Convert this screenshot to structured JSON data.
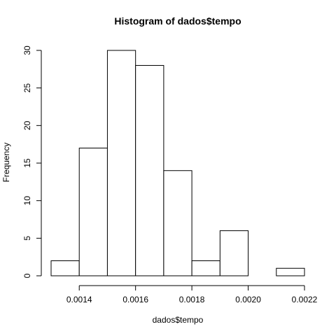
{
  "chart_data": {
    "type": "bar",
    "title": "Histogram of dados$tempo",
    "xlabel": "dados$tempo",
    "ylabel": "Frequency",
    "bin_edges": [
      0.0013,
      0.0014,
      0.0015,
      0.0016,
      0.0017,
      0.0018,
      0.0019,
      0.002,
      0.0021,
      0.0022
    ],
    "values": [
      2,
      17,
      30,
      28,
      14,
      2,
      6,
      0,
      1
    ],
    "xlim": [
      0.0013,
      0.0022
    ],
    "ylim": [
      0,
      30
    ],
    "x_ticks": [
      0.0014,
      0.0016,
      0.0018,
      0.002,
      0.0022
    ],
    "x_tick_labels": [
      "0.0014",
      "0.0016",
      "0.0018",
      "0.0020",
      "0.0022"
    ],
    "y_ticks": [
      0,
      5,
      10,
      15,
      20,
      25,
      30
    ],
    "y_tick_labels": [
      "0",
      "5",
      "10",
      "15",
      "20",
      "25",
      "30"
    ],
    "grid": false,
    "legend": "none"
  }
}
